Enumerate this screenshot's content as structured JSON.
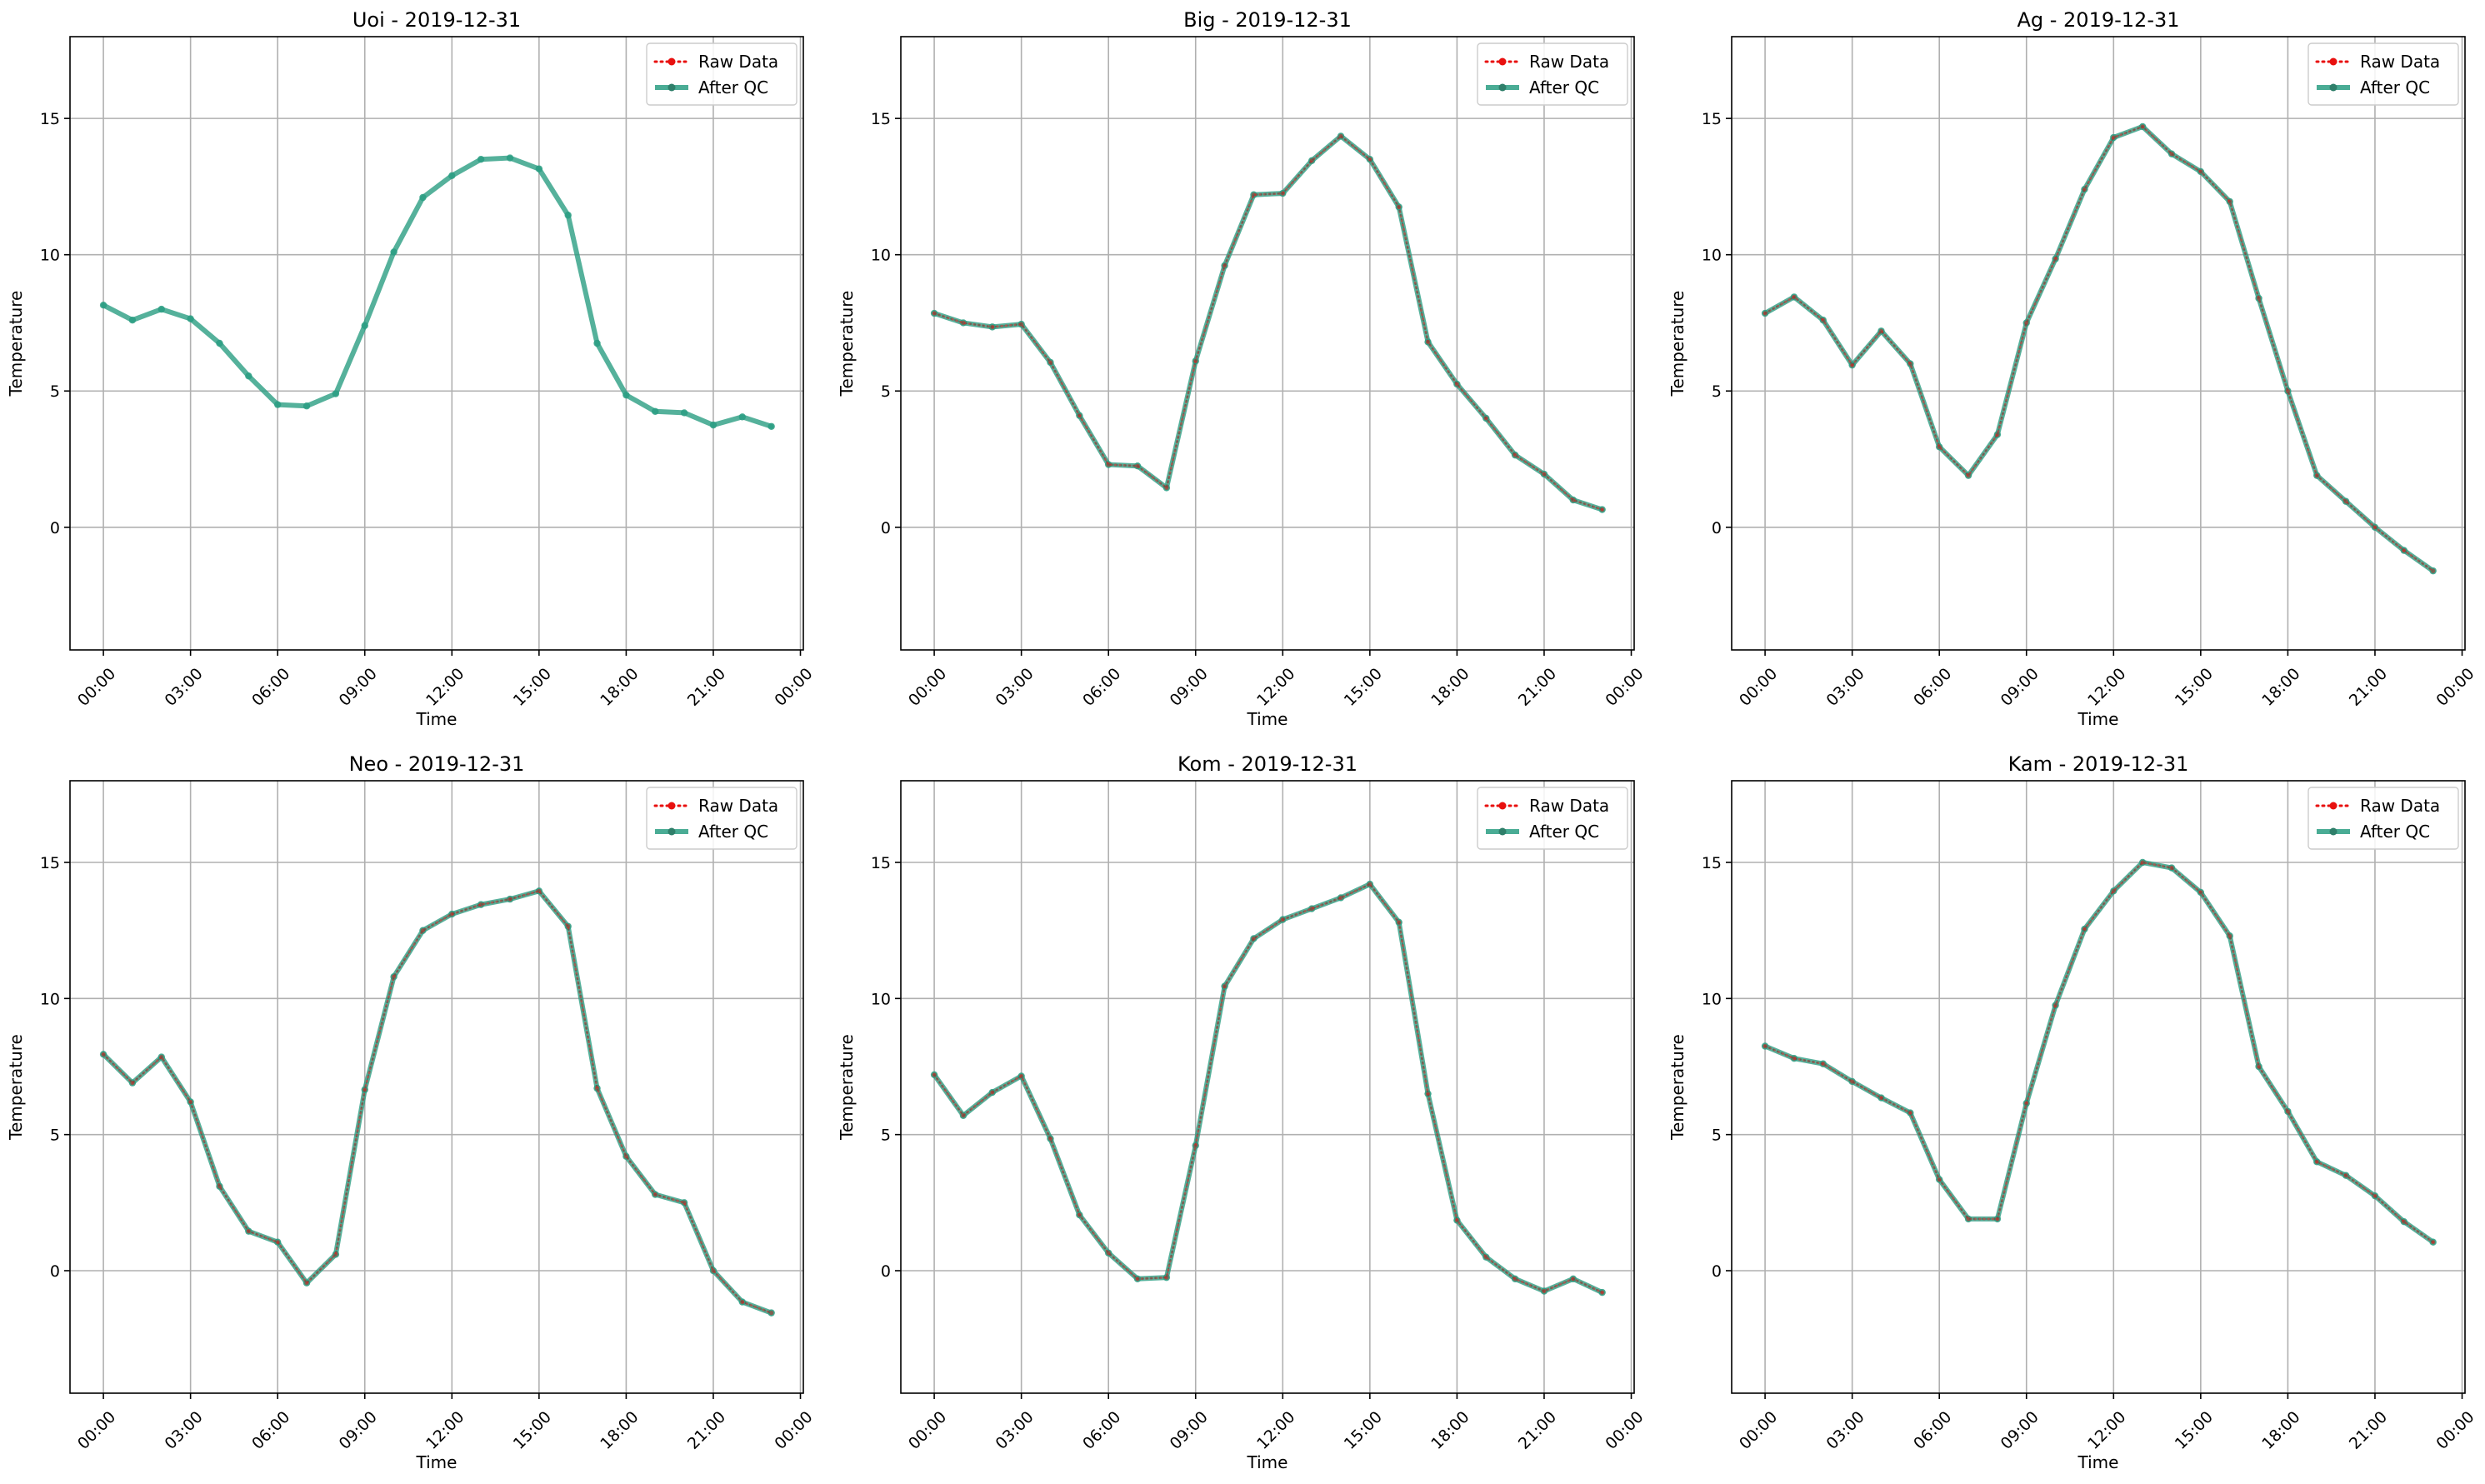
{
  "chart_data": [
    {
      "type": "line",
      "title": "Uoi - 2019-12-31",
      "xlabel": "Time",
      "ylabel": "Temperature",
      "x_tick_labels": [
        "00:00",
        "03:00",
        "06:00",
        "09:00",
        "12:00",
        "15:00",
        "18:00",
        "21:00",
        "00:00"
      ],
      "y_ticks": [
        0,
        5,
        10,
        15
      ],
      "ylim": [
        -4.5,
        18
      ],
      "legend_position": "top-right",
      "grid": true,
      "x_hours": [
        0,
        1,
        2,
        3,
        4,
        5,
        6,
        7,
        8,
        9,
        10,
        11,
        12,
        13,
        14,
        15,
        16,
        17,
        18,
        19,
        20,
        21,
        22,
        23
      ],
      "series": [
        {
          "name": "Raw Data",
          "color": "#e8100f",
          "style": "dotted",
          "values": [
            8.15,
            7.6,
            8.0,
            7.65,
            6.75,
            5.55,
            4.5,
            4.45,
            4.9,
            7.4,
            10.1,
            12.1,
            12.9,
            13.5,
            13.55,
            13.15,
            11.45,
            6.75,
            4.85,
            4.25,
            4.2,
            3.75,
            4.05,
            3.7
          ]
        },
        {
          "name": "After QC",
          "color": "#2a9d82",
          "style": "solid",
          "values": [
            8.15,
            7.6,
            8.0,
            7.65,
            6.75,
            5.55,
            4.5,
            4.45,
            4.9,
            7.4,
            10.1,
            12.1,
            12.9,
            13.5,
            13.55,
            13.15,
            11.45,
            6.75,
            4.85,
            4.25,
            4.2,
            3.75,
            4.05,
            3.7
          ]
        }
      ]
    },
    {
      "type": "line",
      "title": "Big - 2019-12-31",
      "xlabel": "Time",
      "ylabel": "Temperature",
      "x_tick_labels": [
        "00:00",
        "03:00",
        "06:00",
        "09:00",
        "12:00",
        "15:00",
        "18:00",
        "21:00",
        "00:00"
      ],
      "y_ticks": [
        0,
        5,
        10,
        15
      ],
      "ylim": [
        -4.5,
        18
      ],
      "legend_position": "top-right",
      "grid": true,
      "x_hours": [
        0,
        1,
        2,
        3,
        4,
        5,
        6,
        7,
        8,
        9,
        10,
        11,
        12,
        13,
        14,
        15,
        16,
        17,
        18,
        19,
        20,
        21,
        22,
        23
      ],
      "series": [
        {
          "name": "Raw Data",
          "color": "#e8100f",
          "style": "dotted",
          "values": [
            7.85,
            7.5,
            7.35,
            7.45,
            6.05,
            4.1,
            2.3,
            2.25,
            1.45,
            6.1,
            9.6,
            12.2,
            12.25,
            13.45,
            14.35,
            13.5,
            11.75,
            6.8,
            5.25,
            4.0,
            2.65,
            1.95,
            1.0,
            0.65
          ]
        },
        {
          "name": "After QC",
          "color": "#2a9d82",
          "style": "solid",
          "values": [
            7.85,
            7.5,
            7.35,
            7.45,
            6.05,
            4.1,
            2.3,
            2.25,
            1.45,
            6.1,
            9.6,
            12.2,
            12.25,
            13.45,
            14.35,
            13.5,
            11.75,
            6.8,
            5.25,
            4.0,
            2.65,
            1.95,
            1.0,
            0.65
          ]
        }
      ]
    },
    {
      "type": "line",
      "title": "Ag - 2019-12-31",
      "xlabel": "Time",
      "ylabel": "Temperature",
      "x_tick_labels": [
        "00:00",
        "03:00",
        "06:00",
        "09:00",
        "12:00",
        "15:00",
        "18:00",
        "21:00",
        "00:00"
      ],
      "y_ticks": [
        0,
        5,
        10,
        15
      ],
      "ylim": [
        -4.5,
        18
      ],
      "legend_position": "top-right",
      "grid": true,
      "x_hours": [
        0,
        1,
        2,
        3,
        4,
        5,
        6,
        7,
        8,
        9,
        10,
        11,
        12,
        13,
        14,
        15,
        16,
        17,
        18,
        19,
        20,
        21,
        22,
        23
      ],
      "series": [
        {
          "name": "Raw Data",
          "color": "#e8100f",
          "style": "dotted",
          "values": [
            7.85,
            8.45,
            7.6,
            5.95,
            7.2,
            6.0,
            2.95,
            1.9,
            3.4,
            7.5,
            9.85,
            12.4,
            14.3,
            14.7,
            13.7,
            13.05,
            11.95,
            8.4,
            5.0,
            1.9,
            0.95,
            0.0,
            -0.85,
            -1.6
          ]
        },
        {
          "name": "After QC",
          "color": "#2a9d82",
          "style": "solid",
          "values": [
            7.85,
            8.45,
            7.6,
            5.95,
            7.2,
            6.0,
            2.95,
            1.9,
            3.4,
            7.5,
            9.85,
            12.4,
            14.3,
            14.7,
            13.7,
            13.05,
            11.95,
            8.4,
            5.0,
            1.9,
            0.95,
            0.0,
            -0.85,
            -1.6
          ]
        }
      ]
    },
    {
      "type": "line",
      "title": "Neo - 2019-12-31",
      "xlabel": "Time",
      "ylabel": "Temperature",
      "x_tick_labels": [
        "00:00",
        "03:00",
        "06:00",
        "09:00",
        "12:00",
        "15:00",
        "18:00",
        "21:00",
        "00:00"
      ],
      "y_ticks": [
        0,
        5,
        10,
        15
      ],
      "ylim": [
        -4.5,
        18
      ],
      "legend_position": "top-right",
      "grid": true,
      "x_hours": [
        0,
        1,
        2,
        3,
        4,
        5,
        6,
        7,
        8,
        9,
        10,
        11,
        12,
        13,
        14,
        15,
        16,
        17,
        18,
        19,
        20,
        21,
        22,
        23
      ],
      "series": [
        {
          "name": "Raw Data",
          "color": "#e8100f",
          "style": "dotted",
          "values": [
            7.95,
            6.9,
            7.85,
            6.2,
            3.1,
            1.45,
            1.05,
            -0.45,
            0.6,
            6.65,
            10.8,
            12.5,
            13.1,
            13.45,
            13.65,
            13.95,
            12.65,
            6.7,
            4.2,
            2.8,
            2.5,
            0.0,
            -1.15,
            -1.55
          ]
        },
        {
          "name": "After QC",
          "color": "#2a9d82",
          "style": "solid",
          "values": [
            7.95,
            6.9,
            7.85,
            6.2,
            3.1,
            1.45,
            1.05,
            -0.45,
            0.6,
            6.65,
            10.8,
            12.5,
            13.1,
            13.45,
            13.65,
            13.95,
            12.65,
            6.7,
            4.2,
            2.8,
            2.5,
            0.0,
            -1.15,
            -1.55
          ]
        }
      ]
    },
    {
      "type": "line",
      "title": "Kom - 2019-12-31",
      "xlabel": "Time",
      "ylabel": "Temperature",
      "x_tick_labels": [
        "00:00",
        "03:00",
        "06:00",
        "09:00",
        "12:00",
        "15:00",
        "18:00",
        "21:00",
        "00:00"
      ],
      "y_ticks": [
        0,
        5,
        10,
        15
      ],
      "ylim": [
        -4.5,
        18
      ],
      "legend_position": "top-right",
      "grid": true,
      "x_hours": [
        0,
        1,
        2,
        3,
        4,
        5,
        6,
        7,
        8,
        9,
        10,
        11,
        12,
        13,
        14,
        15,
        16,
        17,
        18,
        19,
        20,
        21,
        22,
        23
      ],
      "series": [
        {
          "name": "Raw Data",
          "color": "#e8100f",
          "style": "dotted",
          "values": [
            7.2,
            5.7,
            6.55,
            7.15,
            4.85,
            2.05,
            0.65,
            -0.3,
            -0.25,
            4.6,
            10.45,
            12.2,
            12.9,
            13.3,
            13.7,
            14.2,
            12.8,
            6.5,
            1.85,
            0.5,
            -0.3,
            -0.75,
            -0.3,
            -0.8
          ]
        },
        {
          "name": "After QC",
          "color": "#2a9d82",
          "style": "solid",
          "values": [
            7.2,
            5.7,
            6.55,
            7.15,
            4.85,
            2.05,
            0.65,
            -0.3,
            -0.25,
            4.6,
            10.45,
            12.2,
            12.9,
            13.3,
            13.7,
            14.2,
            12.8,
            6.5,
            1.85,
            0.5,
            -0.3,
            -0.75,
            -0.3,
            -0.8
          ]
        }
      ]
    },
    {
      "type": "line",
      "title": "Kam - 2019-12-31",
      "xlabel": "Time",
      "ylabel": "Temperature",
      "x_tick_labels": [
        "00:00",
        "03:00",
        "06:00",
        "09:00",
        "12:00",
        "15:00",
        "18:00",
        "21:00",
        "00:00"
      ],
      "y_ticks": [
        0,
        5,
        10,
        15
      ],
      "ylim": [
        -4.5,
        18
      ],
      "legend_position": "top-right",
      "grid": true,
      "x_hours": [
        0,
        1,
        2,
        3,
        4,
        5,
        6,
        7,
        8,
        9,
        10,
        11,
        12,
        13,
        14,
        15,
        16,
        17,
        18,
        19,
        20,
        21,
        22,
        23
      ],
      "series": [
        {
          "name": "Raw Data",
          "color": "#e8100f",
          "style": "dotted",
          "values": [
            8.25,
            7.8,
            7.6,
            6.95,
            6.35,
            5.8,
            3.35,
            1.9,
            1.9,
            6.15,
            9.75,
            12.55,
            13.95,
            15.0,
            14.8,
            13.9,
            12.3,
            7.5,
            5.85,
            4.0,
            3.5,
            2.75,
            1.8,
            1.05
          ]
        },
        {
          "name": "After QC",
          "color": "#2a9d82",
          "style": "solid",
          "values": [
            8.25,
            7.8,
            7.6,
            6.95,
            6.35,
            5.8,
            3.35,
            1.9,
            1.9,
            6.15,
            9.75,
            12.55,
            13.95,
            15.0,
            14.8,
            13.9,
            12.3,
            7.5,
            5.85,
            4.0,
            3.5,
            2.75,
            1.8,
            1.05
          ]
        }
      ]
    }
  ]
}
